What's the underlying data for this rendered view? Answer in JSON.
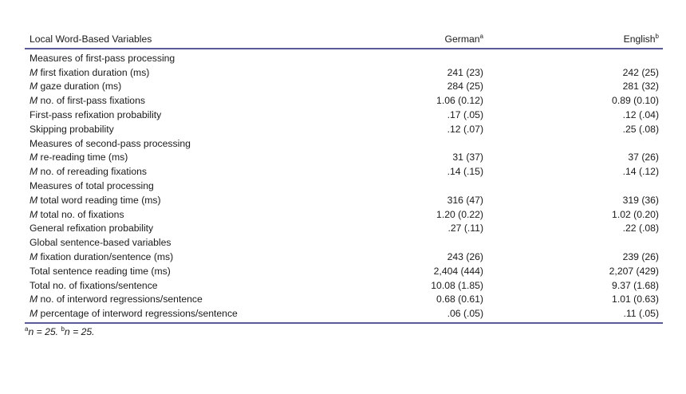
{
  "header": {
    "col1": "Local Word-Based Variables",
    "col2": "German",
    "col2_sup": "a",
    "col3": "English",
    "col3_sup": "b"
  },
  "rows": [
    {
      "m": "",
      "label": "Measures of first-pass processing",
      "german": "",
      "english": ""
    },
    {
      "m": "M",
      "label": " first fixation duration (ms)",
      "german": "241 (23)",
      "english": "242 (25)"
    },
    {
      "m": "M",
      "label": " gaze duration (ms)",
      "german": "284 (25)",
      "english": "281 (32)"
    },
    {
      "m": "M",
      "label": " no. of first-pass fixations",
      "german": "1.06 (0.12)",
      "english": "0.89 (0.10)"
    },
    {
      "m": "",
      "label": "First-pass refixation probability",
      "german": ".17 (.05)",
      "english": ".12 (.04)"
    },
    {
      "m": "",
      "label": "Skipping probability",
      "german": ".12 (.07)",
      "english": ".25 (.08)"
    },
    {
      "m": "",
      "label": "Measures of second-pass processing",
      "german": "",
      "english": ""
    },
    {
      "m": "M",
      "label": " re-reading time (ms)",
      "german": "31 (37)",
      "english": "37 (26)"
    },
    {
      "m": "M",
      "label": " no. of rereading fixations",
      "german": ".14 (.15)",
      "english": ".14 (.12)"
    },
    {
      "m": "",
      "label": "Measures of total processing",
      "german": "",
      "english": ""
    },
    {
      "m": "M",
      "label": " total word reading time (ms)",
      "german": "316 (47)",
      "english": "319 (36)"
    },
    {
      "m": "M",
      "label": " total no. of fixations",
      "german": "1.20 (0.22)",
      "english": "1.02 (0.20)"
    },
    {
      "m": "",
      "label": "General refixation probability",
      "german": ".27 (.11)",
      "english": ".22 (.08)"
    },
    {
      "m": "",
      "label": "Global sentence-based variables",
      "german": "",
      "english": ""
    },
    {
      "m": "M",
      "label": " fixation duration/sentence (ms)",
      "german": "243 (26)",
      "english": "239 (26)"
    },
    {
      "m": "",
      "label": "Total sentence reading time (ms)",
      "german": "2,404 (444)",
      "english": "2,207 (429)"
    },
    {
      "m": "",
      "label": "Total no. of fixations/sentence",
      "german": "10.08 (1.85)",
      "english": "9.37 (1.68)"
    },
    {
      "m": "M",
      "label": " no. of interword regressions/sentence",
      "german": "0.68 (0.61)",
      "english": "1.01 (0.63)"
    },
    {
      "m": "M",
      "label": " percentage of interword regressions/sentence",
      "german": ".06 (.05)",
      "english": ".11 (.05)"
    }
  ],
  "footnote": {
    "a_sup": "a",
    "a_text": "n = 25. ",
    "b_sup": "b",
    "b_text": "n = 25."
  }
}
